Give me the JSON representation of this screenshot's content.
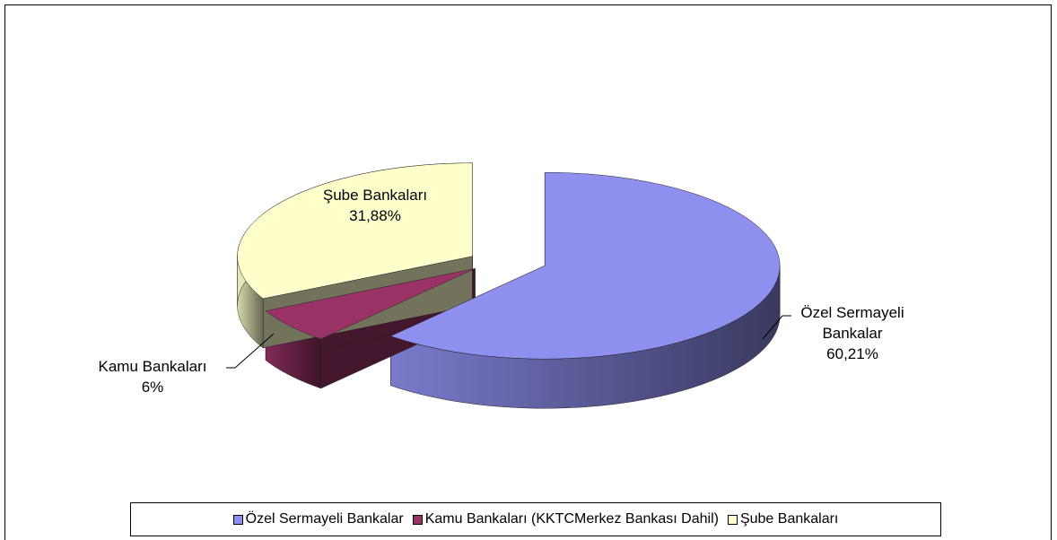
{
  "chart_data": {
    "type": "pie3d",
    "categories": [
      "Özel Sermayeli Bankalar",
      "Kamu Bankaları (KKTCMerkez Bankası Dahil)",
      "Şube Bankaları"
    ],
    "label_names": [
      "Özel Sermayeli Bankalar",
      "Kamu Bankaları",
      "Şube Bankaları"
    ],
    "values": [
      60.21,
      6,
      31.88
    ],
    "value_labels": [
      "60,21%",
      "6%",
      "31,88%"
    ],
    "colors": [
      "#8f8ff0",
      "#993366",
      "#ffffcc"
    ],
    "legend": "bottom"
  }
}
